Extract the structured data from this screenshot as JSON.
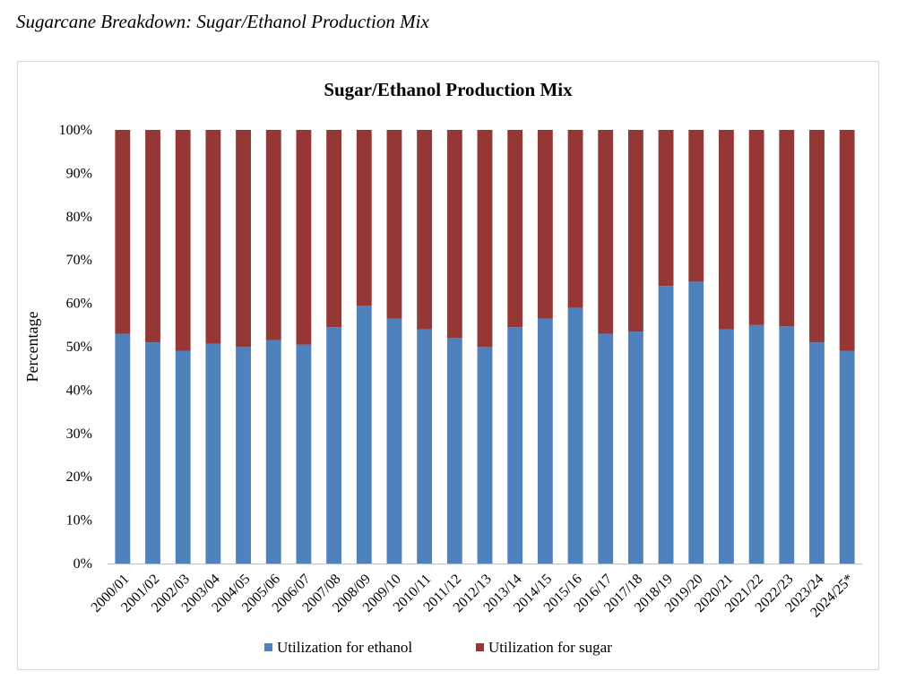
{
  "caption": "Sugarcane Breakdown: Sugar/Ethanol Production Mix",
  "chart_data": {
    "type": "bar",
    "stacked": true,
    "title": "Sugar/Ethanol Production Mix",
    "xlabel": "",
    "ylabel": "Percentage",
    "ylim": [
      0,
      100
    ],
    "yticks": [
      "0%",
      "10%",
      "20%",
      "30%",
      "40%",
      "50%",
      "60%",
      "70%",
      "80%",
      "90%",
      "100%"
    ],
    "grid": false,
    "legend": "bottom",
    "categories": [
      "2000/01",
      "2001/02",
      "2002/03",
      "2003/04",
      "2004/05",
      "2005/06",
      "2006/07",
      "2007/08",
      "2008/09",
      "2009/10",
      "2010/11",
      "2011/12",
      "2012/13",
      "2013/14",
      "2014/15",
      "2015/16",
      "2016/17",
      "2017/18",
      "2018/19",
      "2019/20",
      "2020/21",
      "2021/22",
      "2022/23",
      "2023/24",
      "2024/25*"
    ],
    "series": [
      {
        "name": "Utilization for ethanol",
        "color": "#4f81bd",
        "values": [
          53,
          51,
          49,
          50.7,
          50,
          51.5,
          50.5,
          54.5,
          59.5,
          56.5,
          54,
          52,
          50,
          54.5,
          56.5,
          59,
          53,
          53.5,
          64,
          65,
          54,
          55,
          54.7,
          51,
          49
        ]
      },
      {
        "name": "Utilization for sugar",
        "color": "#953735",
        "values": [
          47,
          49,
          51,
          49.3,
          50,
          48.5,
          49.5,
          45.5,
          40.5,
          43.5,
          46,
          48,
          50,
          45.5,
          43.5,
          41,
          47,
          46.5,
          36,
          35,
          46,
          45,
          45.3,
          49,
          51
        ]
      }
    ]
  }
}
